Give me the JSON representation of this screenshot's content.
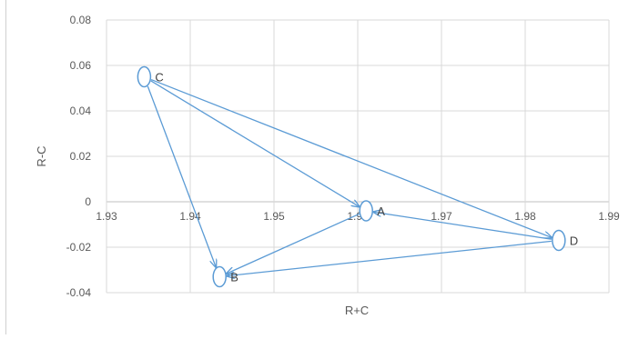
{
  "chart_data": {
    "type": "scatter",
    "title": "",
    "xlabel": "R+C",
    "ylabel": "R-C",
    "xlim": [
      1.93,
      1.99
    ],
    "ylim": [
      -0.04,
      0.08
    ],
    "x_ticks": [
      "1.93",
      "1.94",
      "1.95",
      "1.96",
      "1.97",
      "1.98",
      "1.99"
    ],
    "y_ticks": [
      "-0.04",
      "-0.02",
      "0",
      "0.02",
      "0.04",
      "0.06",
      "0.08"
    ],
    "grid": "vertical-and-horizontal",
    "points": [
      {
        "label": "A",
        "x": 1.961,
        "y": -0.004
      },
      {
        "label": "B",
        "x": 1.9435,
        "y": -0.033
      },
      {
        "label": "C",
        "x": 1.9345,
        "y": 0.055
      },
      {
        "label": "D",
        "x": 1.984,
        "y": -0.017
      }
    ],
    "arrows": [
      {
        "from": "C",
        "to": "A"
      },
      {
        "from": "C",
        "to": "B"
      },
      {
        "from": "C",
        "to": "D"
      },
      {
        "from": "A",
        "to": "B"
      },
      {
        "from": "D",
        "to": "A"
      },
      {
        "from": "D",
        "to": "B"
      }
    ],
    "colors": {
      "series": "#5b9bd5",
      "grid": "#d9d9d9",
      "text": "#595959"
    }
  }
}
